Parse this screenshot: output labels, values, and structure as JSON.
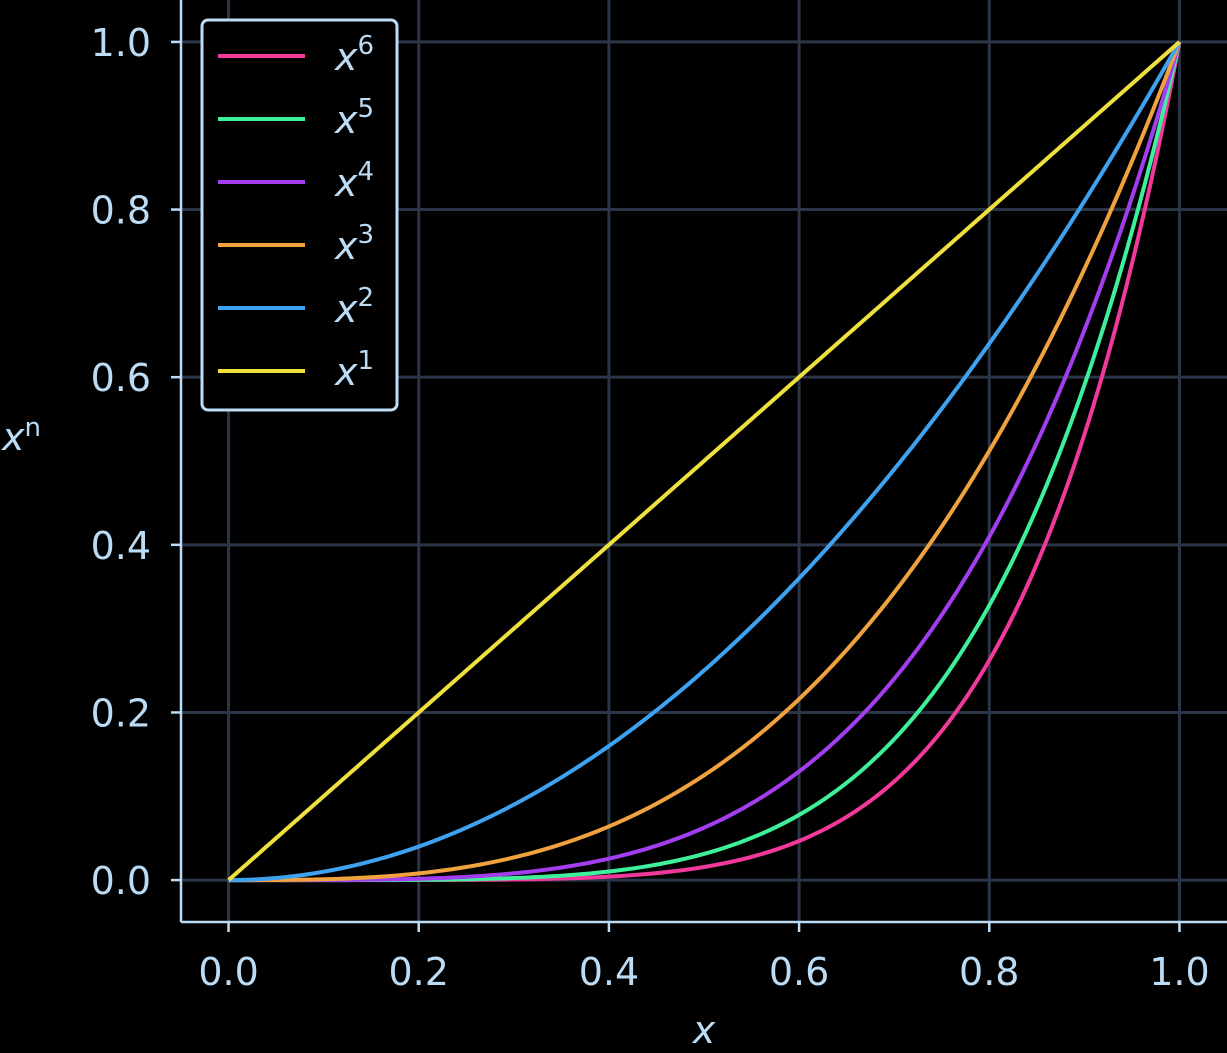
{
  "chart_data": {
    "type": "line",
    "title": "",
    "xlabel": "x",
    "ylabel": "x",
    "ylabel_sup": "n",
    "xlim": [
      -0.05,
      1.05
    ],
    "ylim": [
      -0.05,
      1.05
    ],
    "x_ticks": [
      0.0,
      0.2,
      0.4,
      0.6,
      0.8,
      1.0
    ],
    "y_ticks": [
      0.0,
      0.2,
      0.4,
      0.6,
      0.8,
      1.0
    ],
    "x_tick_labels": [
      "0.0",
      "0.2",
      "0.4",
      "0.6",
      "0.8",
      "1.0"
    ],
    "y_tick_labels": [
      "0.0",
      "0.2",
      "0.4",
      "0.6",
      "0.8",
      "1.0"
    ],
    "grid": true,
    "legend_position": "top-left",
    "background": "#000000",
    "grid_color": "#2a3547",
    "axis_color": "#bcdcf5",
    "x": [
      0.0,
      0.05,
      0.1,
      0.15,
      0.2,
      0.25,
      0.3,
      0.35,
      0.4,
      0.45,
      0.5,
      0.55,
      0.6,
      0.65,
      0.7,
      0.75,
      0.8,
      0.85,
      0.9,
      0.95,
      1.0
    ],
    "series": [
      {
        "name": "x",
        "sup": "6",
        "color": "#f0399a",
        "values": [
          0.0,
          0.0,
          0.0,
          0.0,
          0.0001,
          0.0002,
          0.0007,
          0.0018,
          0.0041,
          0.0083,
          0.0156,
          0.0277,
          0.0467,
          0.0754,
          0.1176,
          0.178,
          0.2621,
          0.3771,
          0.5314,
          0.7351,
          1.0
        ]
      },
      {
        "name": "x",
        "sup": "5",
        "color": "#3ef09a",
        "values": [
          0.0,
          0.0,
          0.0,
          0.0001,
          0.0003,
          0.001,
          0.0024,
          0.0053,
          0.0102,
          0.0185,
          0.0313,
          0.0503,
          0.0778,
          0.116,
          0.1681,
          0.2373,
          0.3277,
          0.4437,
          0.5905,
          0.7738,
          1.0
        ]
      },
      {
        "name": "x",
        "sup": "4",
        "color": "#a23ef0",
        "values": [
          0.0,
          0.0,
          0.0001,
          0.0005,
          0.0016,
          0.0039,
          0.0081,
          0.015,
          0.0256,
          0.041,
          0.0625,
          0.0915,
          0.1296,
          0.1785,
          0.2401,
          0.3164,
          0.4096,
          0.522,
          0.6561,
          0.8145,
          1.0
        ]
      },
      {
        "name": "x",
        "sup": "3",
        "color": "#f0a23e",
        "values": [
          0.0,
          0.0001,
          0.001,
          0.0034,
          0.008,
          0.0156,
          0.027,
          0.0429,
          0.064,
          0.0911,
          0.125,
          0.1664,
          0.216,
          0.2746,
          0.343,
          0.4219,
          0.512,
          0.6141,
          0.729,
          0.8574,
          1.0
        ]
      },
      {
        "name": "x",
        "sup": "2",
        "color": "#3ea2f0",
        "values": [
          0.0,
          0.0025,
          0.01,
          0.0225,
          0.04,
          0.0625,
          0.09,
          0.1225,
          0.16,
          0.2025,
          0.25,
          0.3025,
          0.36,
          0.4225,
          0.49,
          0.5625,
          0.64,
          0.7225,
          0.81,
          0.9025,
          1.0
        ]
      },
      {
        "name": "x",
        "sup": "1",
        "color": "#f0e03e",
        "values": [
          0.0,
          0.05,
          0.1,
          0.15,
          0.2,
          0.25,
          0.3,
          0.35,
          0.4,
          0.45,
          0.5,
          0.55,
          0.6,
          0.65,
          0.7,
          0.75,
          0.8,
          0.85,
          0.9,
          0.95,
          1.0
        ]
      }
    ]
  }
}
